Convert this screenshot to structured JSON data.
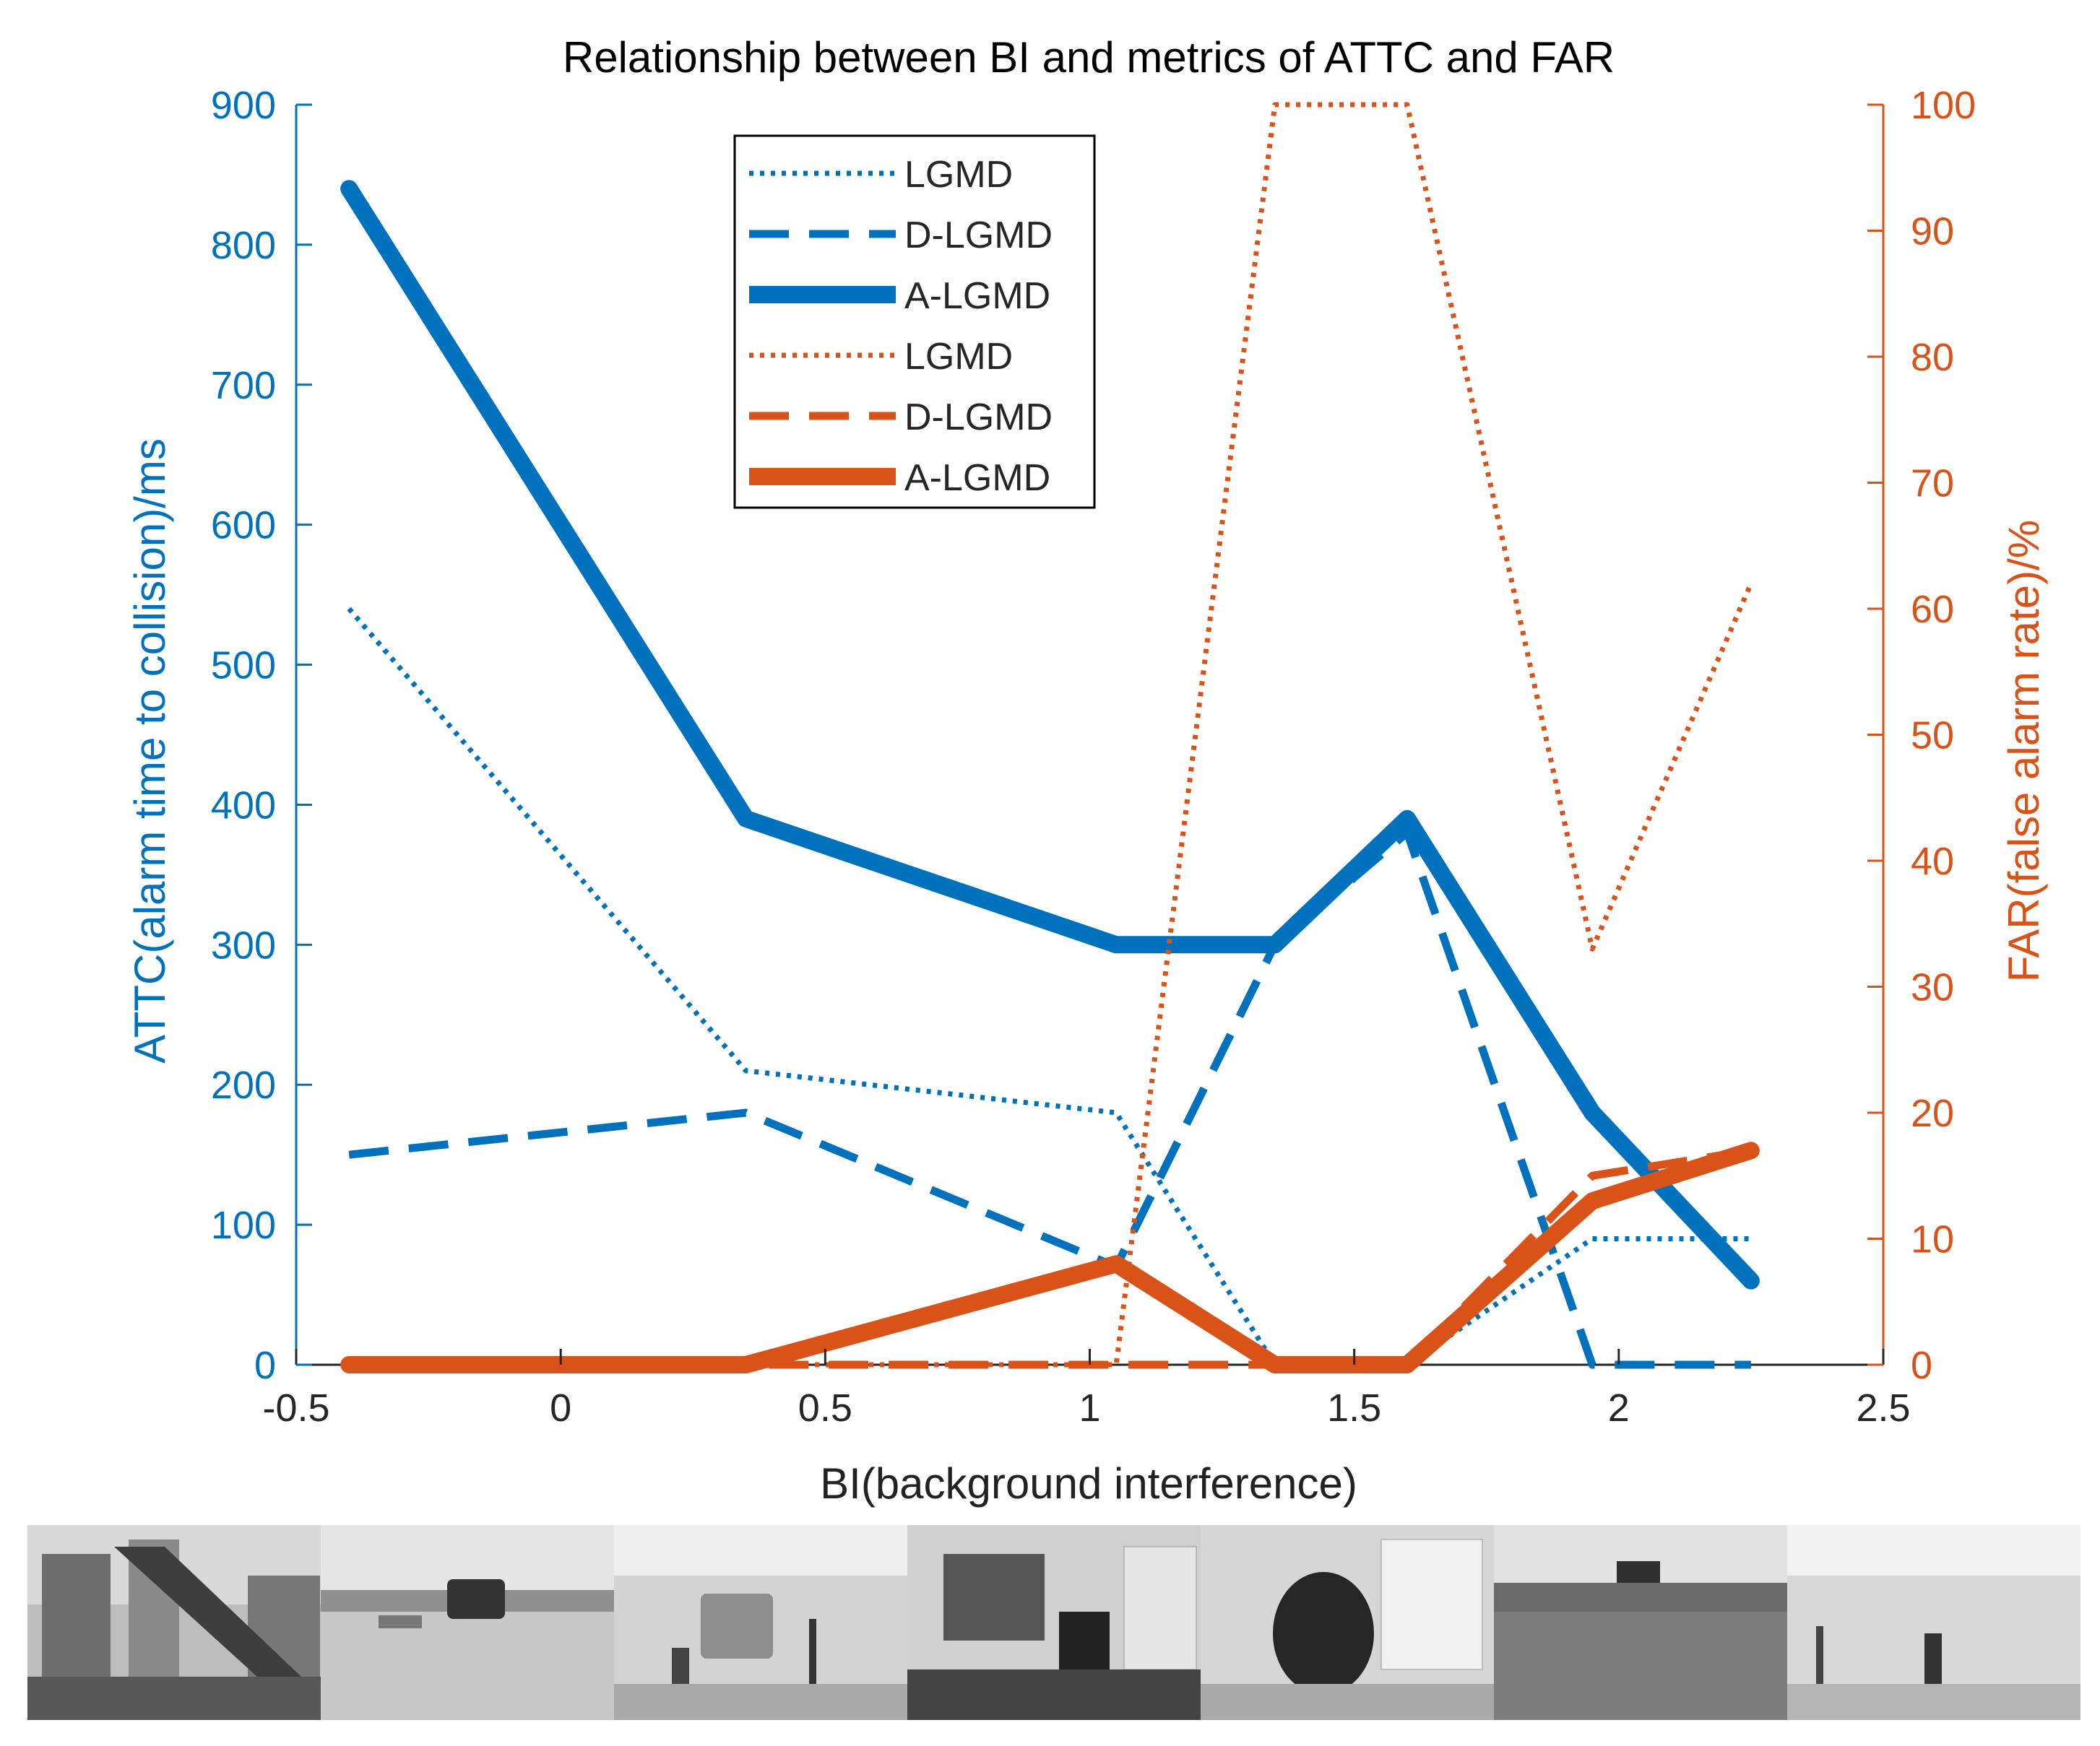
{
  "colors": {
    "blue": "#0072bd",
    "orange": "#d95319",
    "axis_text": "#000000"
  },
  "chart_data": {
    "type": "line",
    "title": "Relationship between BI and metrics of ATTC and FAR",
    "xlabel": "BI(background interference)",
    "ylabel_left": "ATTC(alarm time to collision)/ms",
    "ylabel_right": "FAR(false alarm rate)/%",
    "xlim": [
      -0.5,
      2.5
    ],
    "ylim_left": [
      0,
      900
    ],
    "ylim_right": [
      0,
      100
    ],
    "xticks": [
      -0.5,
      0,
      0.5,
      1,
      1.5,
      2,
      2.5
    ],
    "xtick_labels": [
      "-0.5",
      "0",
      "0.5",
      "1",
      "1.5",
      "2",
      "2.5"
    ],
    "yticks_left": [
      0,
      100,
      200,
      300,
      400,
      500,
      600,
      700,
      800,
      900
    ],
    "yticks_right": [
      0,
      10,
      20,
      30,
      40,
      50,
      60,
      70,
      80,
      90,
      100
    ],
    "legend_position": "top-center",
    "grid": false,
    "x": [
      -0.4,
      0.35,
      1.05,
      1.35,
      1.6,
      1.95,
      2.25
    ],
    "series": [
      {
        "name": "LGMD",
        "axis": "left",
        "color": "blue",
        "style": "dotted",
        "values": [
          540,
          210,
          180,
          0,
          0,
          90,
          90
        ]
      },
      {
        "name": "D-LGMD",
        "axis": "left",
        "color": "blue",
        "style": "dashed",
        "values": [
          150,
          180,
          70,
          300,
          380,
          0,
          0
        ]
      },
      {
        "name": "A-LGMD",
        "axis": "left",
        "color": "blue",
        "style": "solid",
        "values": [
          840,
          390,
          300,
          300,
          390,
          180,
          60
        ]
      },
      {
        "name": "LGMD",
        "axis": "right",
        "color": "orange",
        "style": "dotted",
        "values": [
          0,
          0,
          0,
          100,
          100,
          33,
          62
        ]
      },
      {
        "name": "D-LGMD",
        "axis": "right",
        "color": "orange",
        "style": "dashed",
        "values": [
          0,
          0,
          0,
          0,
          0,
          15,
          17
        ]
      },
      {
        "name": "A-LGMD",
        "axis": "right",
        "color": "orange",
        "style": "solid",
        "values": [
          0,
          0,
          8,
          0,
          0,
          13,
          17
        ]
      }
    ]
  },
  "thumbnails": [
    {
      "name": "building-street-scene"
    },
    {
      "name": "vehicle-dirt-road"
    },
    {
      "name": "lab-ball-toss"
    },
    {
      "name": "lab-desk-checkerboard"
    },
    {
      "name": "lab-chair"
    },
    {
      "name": "outdoor-drone-field"
    },
    {
      "name": "lab-person-walking"
    }
  ]
}
